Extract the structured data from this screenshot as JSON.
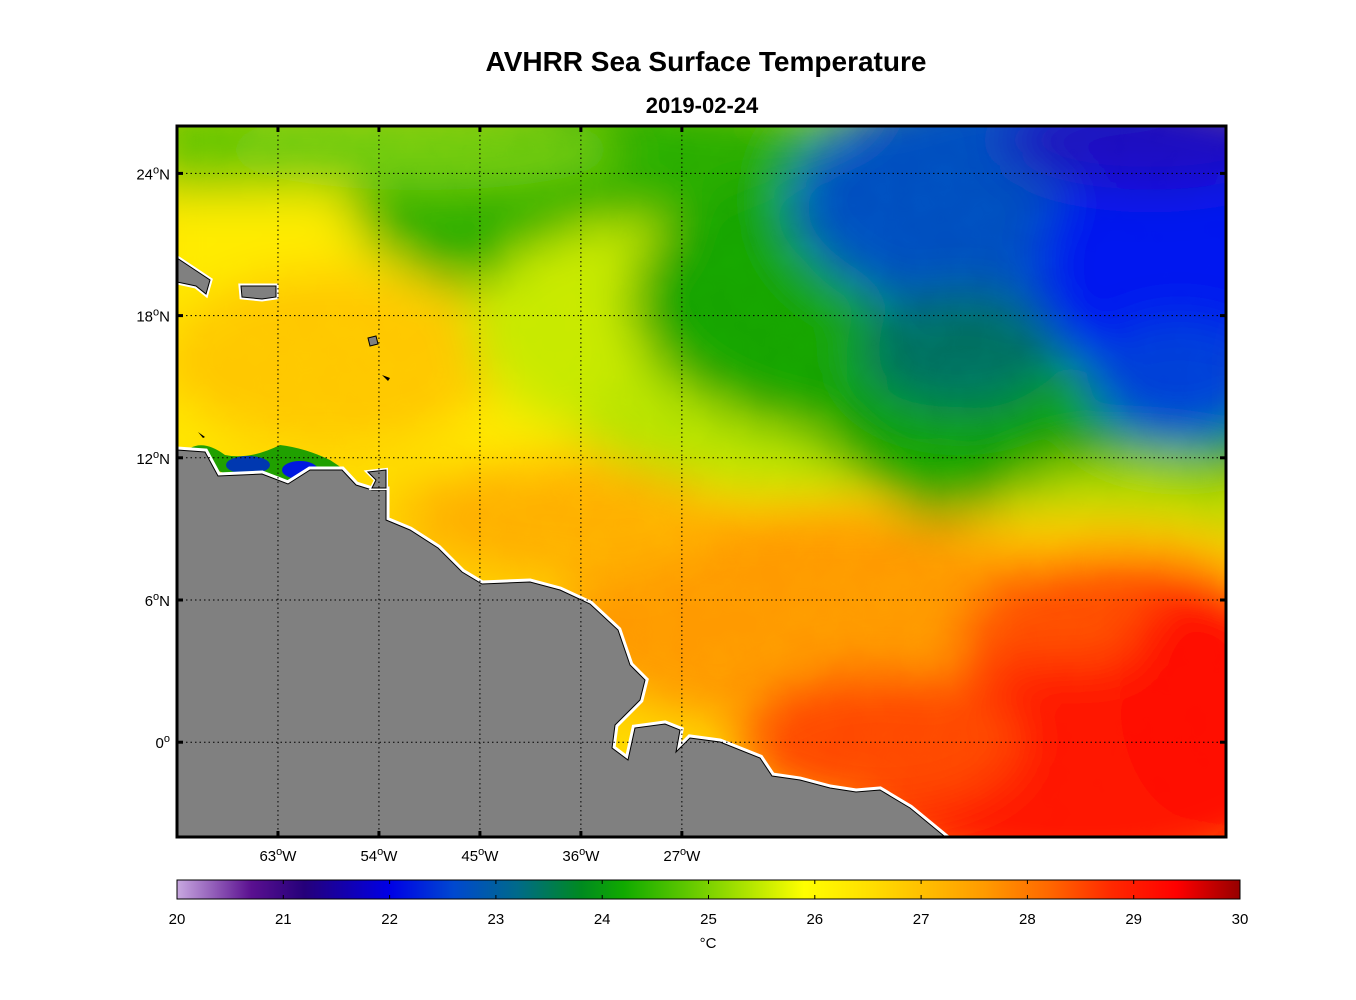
{
  "figure": {
    "title": "AVHRR Sea Surface Temperature",
    "subtitle": "2019-02-24"
  },
  "map": {
    "lon_range": [
      -72,
      21.5
    ],
    "lat_range": [
      -4,
      26
    ],
    "lat_ticks": [
      {
        "value": 24,
        "label": "24",
        "hemi": "N"
      },
      {
        "value": 18,
        "label": "18",
        "hemi": "N"
      },
      {
        "value": 12,
        "label": "12",
        "hemi": "N"
      },
      {
        "value": 6,
        "label": "6",
        "hemi": "N"
      },
      {
        "value": 0,
        "label": "0",
        "hemi": ""
      }
    ],
    "lon_ticks": [
      {
        "value": -63,
        "label": "63",
        "hemi": "W"
      },
      {
        "value": -54,
        "label": "54",
        "hemi": "W"
      },
      {
        "value": -45,
        "label": "45",
        "hemi": "W"
      },
      {
        "value": -36,
        "label": "36",
        "hemi": "W"
      },
      {
        "value": -27,
        "label": "27",
        "hemi": "W"
      }
    ],
    "land_color": "#808080",
    "gridlines": "dotted"
  },
  "colorbar": {
    "min": 20,
    "max": 30,
    "tick_labels": [
      "20",
      "21",
      "22",
      "23",
      "24",
      "25",
      "26",
      "27",
      "28",
      "29",
      "30"
    ],
    "unit": "°C",
    "stops": [
      {
        "t": 20,
        "color": "#c8a8e0"
      },
      {
        "t": 20.7,
        "color": "#5a1090"
      },
      {
        "t": 21.2,
        "color": "#25007a"
      },
      {
        "t": 22.0,
        "color": "#0000e6"
      },
      {
        "t": 22.6,
        "color": "#0048d0"
      },
      {
        "t": 23.2,
        "color": "#006a8a"
      },
      {
        "t": 23.8,
        "color": "#008a20"
      },
      {
        "t": 24.2,
        "color": "#10aa00"
      },
      {
        "t": 24.8,
        "color": "#60c800"
      },
      {
        "t": 25.4,
        "color": "#b4e600"
      },
      {
        "t": 25.9,
        "color": "#ffff00"
      },
      {
        "t": 26.5,
        "color": "#ffe000"
      },
      {
        "t": 27.0,
        "color": "#ffc000"
      },
      {
        "t": 27.6,
        "color": "#ff9a00"
      },
      {
        "t": 28.2,
        "color": "#ff6800"
      },
      {
        "t": 28.8,
        "color": "#ff2800"
      },
      {
        "t": 29.4,
        "color": "#ff0000"
      },
      {
        "t": 30.0,
        "color": "#960000"
      }
    ]
  }
}
